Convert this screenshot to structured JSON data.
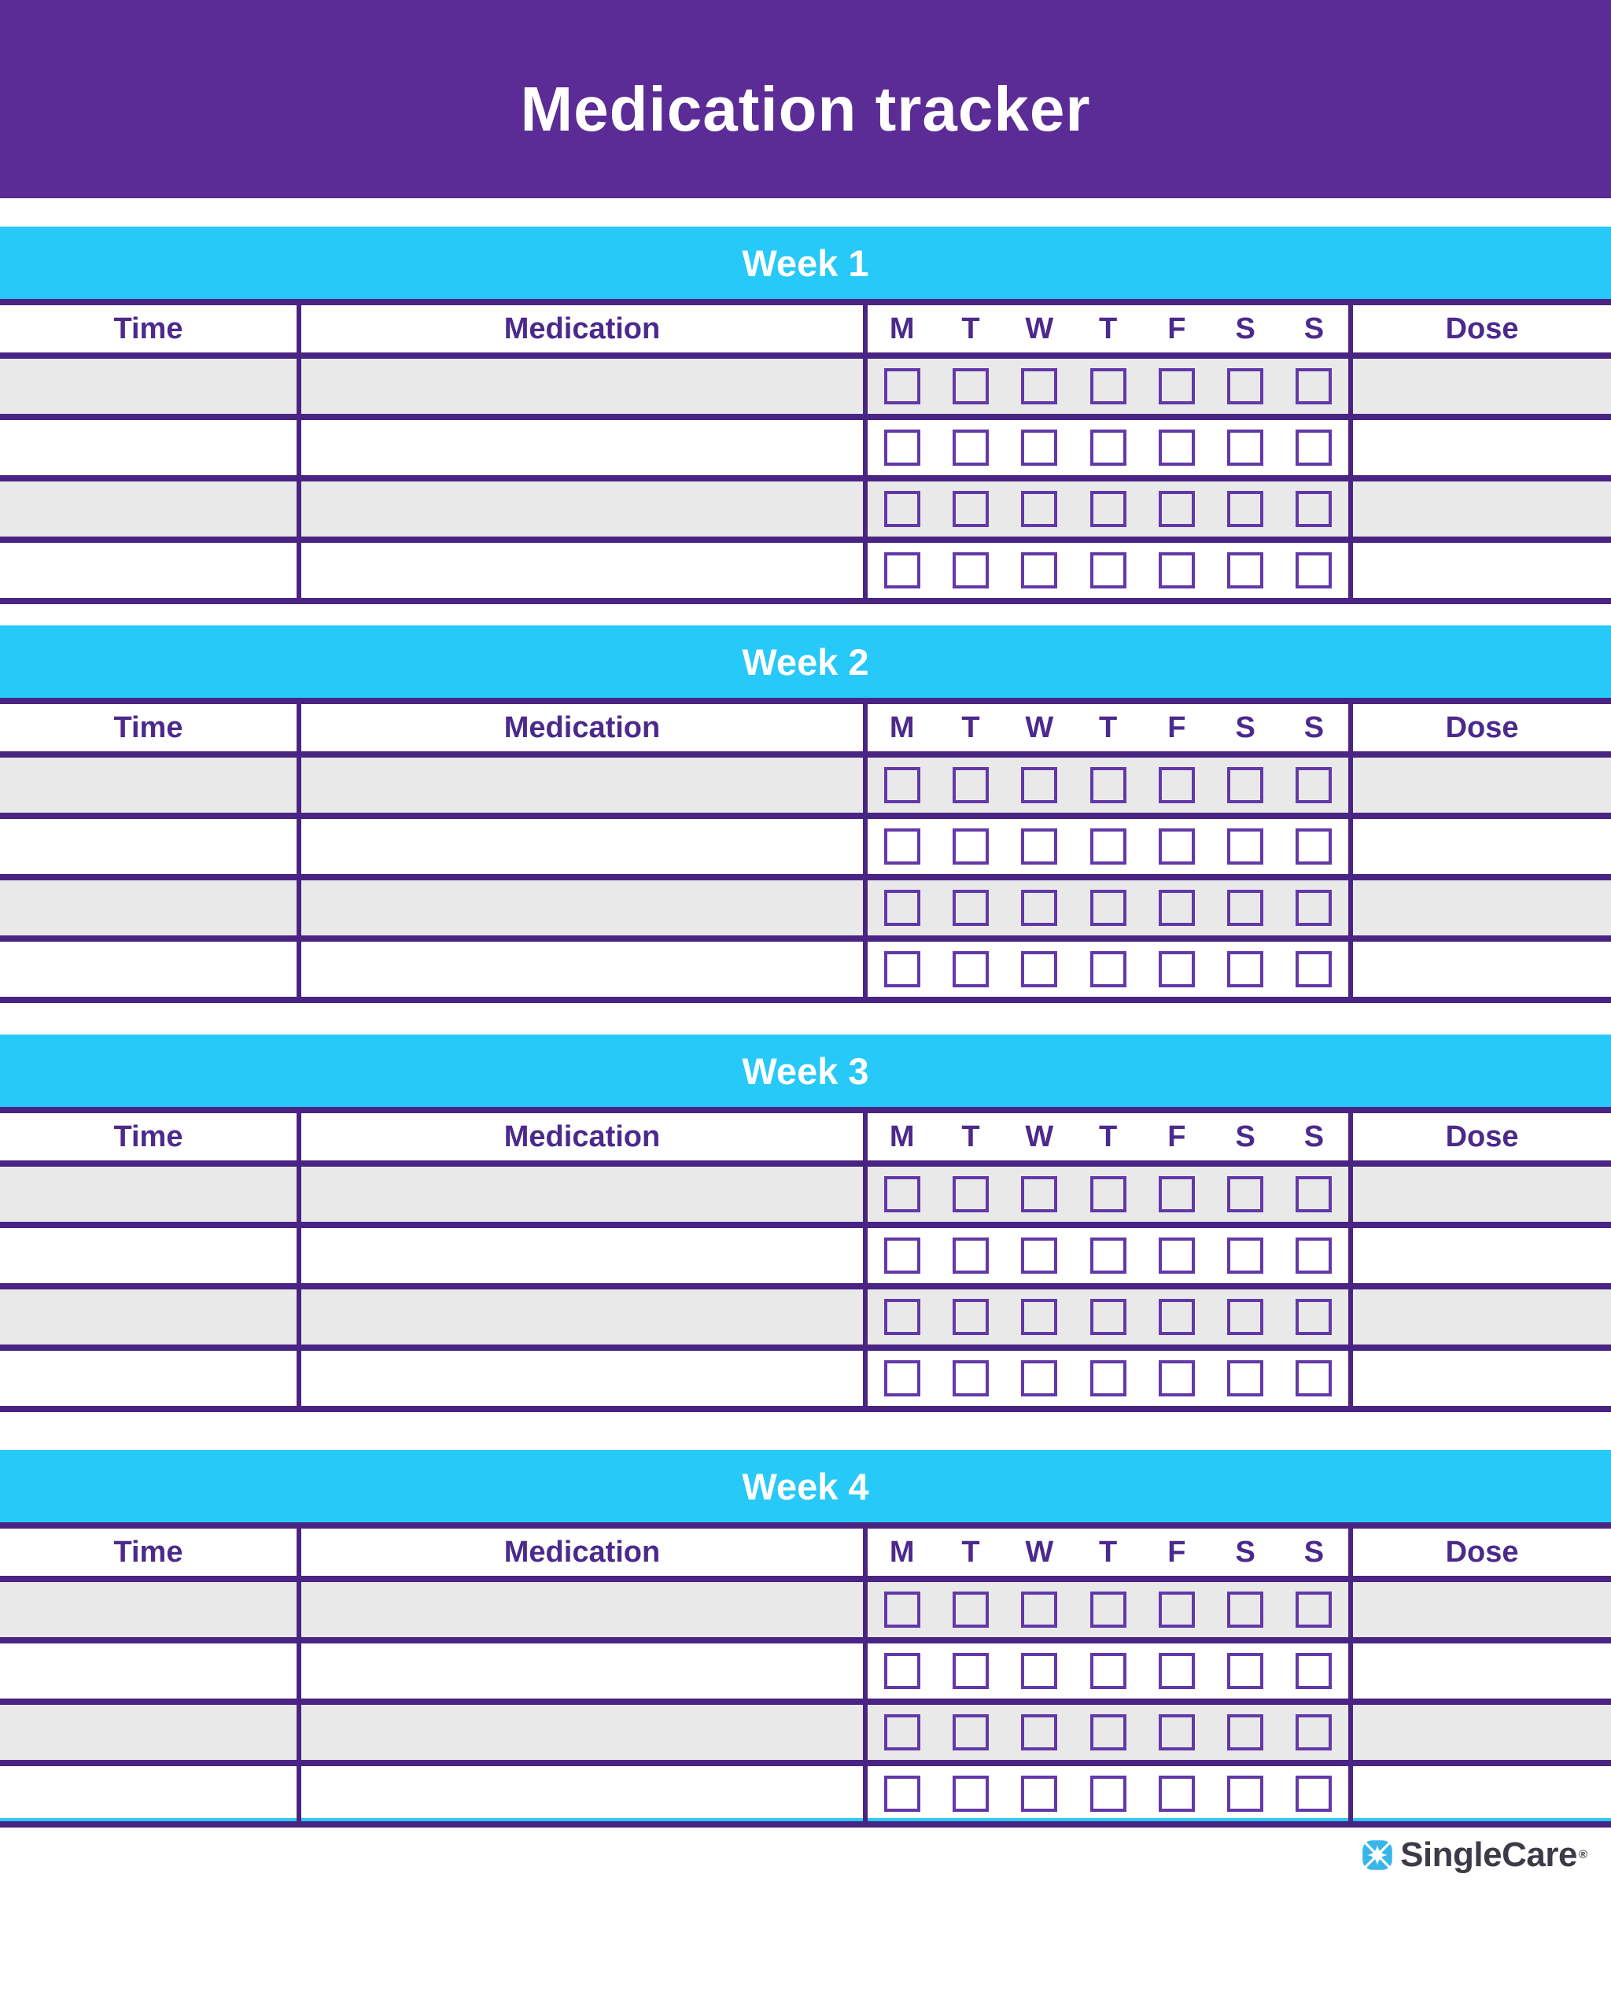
{
  "page_title": "Medication tracker",
  "table_headers": {
    "time": "Time",
    "medication": "Medication",
    "dose": "Dose"
  },
  "day_headers": [
    "M",
    "T",
    "W",
    "T",
    "F",
    "S",
    "S"
  ],
  "weeks": [
    {
      "title": "Week 1",
      "rows": [
        {
          "time": "",
          "medication": "",
          "dose": "",
          "checks": [
            false,
            false,
            false,
            false,
            false,
            false,
            false
          ]
        },
        {
          "time": "",
          "medication": "",
          "dose": "",
          "checks": [
            false,
            false,
            false,
            false,
            false,
            false,
            false
          ]
        },
        {
          "time": "",
          "medication": "",
          "dose": "",
          "checks": [
            false,
            false,
            false,
            false,
            false,
            false,
            false
          ]
        },
        {
          "time": "",
          "medication": "",
          "dose": "",
          "checks": [
            false,
            false,
            false,
            false,
            false,
            false,
            false
          ]
        }
      ]
    },
    {
      "title": "Week 2",
      "rows": [
        {
          "time": "",
          "medication": "",
          "dose": "",
          "checks": [
            false,
            false,
            false,
            false,
            false,
            false,
            false
          ]
        },
        {
          "time": "",
          "medication": "",
          "dose": "",
          "checks": [
            false,
            false,
            false,
            false,
            false,
            false,
            false
          ]
        },
        {
          "time": "",
          "medication": "",
          "dose": "",
          "checks": [
            false,
            false,
            false,
            false,
            false,
            false,
            false
          ]
        },
        {
          "time": "",
          "medication": "",
          "dose": "",
          "checks": [
            false,
            false,
            false,
            false,
            false,
            false,
            false
          ]
        }
      ]
    },
    {
      "title": "Week 3",
      "rows": [
        {
          "time": "",
          "medication": "",
          "dose": "",
          "checks": [
            false,
            false,
            false,
            false,
            false,
            false,
            false
          ]
        },
        {
          "time": "",
          "medication": "",
          "dose": "",
          "checks": [
            false,
            false,
            false,
            false,
            false,
            false,
            false
          ]
        },
        {
          "time": "",
          "medication": "",
          "dose": "",
          "checks": [
            false,
            false,
            false,
            false,
            false,
            false,
            false
          ]
        },
        {
          "time": "",
          "medication": "",
          "dose": "",
          "checks": [
            false,
            false,
            false,
            false,
            false,
            false,
            false
          ]
        }
      ]
    },
    {
      "title": "Week 4",
      "rows": [
        {
          "time": "",
          "medication": "",
          "dose": "",
          "checks": [
            false,
            false,
            false,
            false,
            false,
            false,
            false
          ]
        },
        {
          "time": "",
          "medication": "",
          "dose": "",
          "checks": [
            false,
            false,
            false,
            false,
            false,
            false,
            false
          ]
        },
        {
          "time": "",
          "medication": "",
          "dose": "",
          "checks": [
            false,
            false,
            false,
            false,
            false,
            false,
            false
          ]
        },
        {
          "time": "",
          "medication": "",
          "dose": "",
          "checks": [
            false,
            false,
            false,
            false,
            false,
            false,
            false
          ]
        }
      ]
    }
  ],
  "footer": {
    "brand": "SingleCare",
    "registered_mark": "®"
  },
  "colors": {
    "banner_purple": "#5b2b96",
    "line_purple": "#4a2483",
    "header_text_purple": "#4b2a8c",
    "checkbox_border_purple": "#6338a8",
    "week_bar_cyan": "#26c9f7",
    "row_grey": "#e9e9e9",
    "logo_blue": "#38b6ea",
    "logo_text_grey": "#3d3b47"
  }
}
